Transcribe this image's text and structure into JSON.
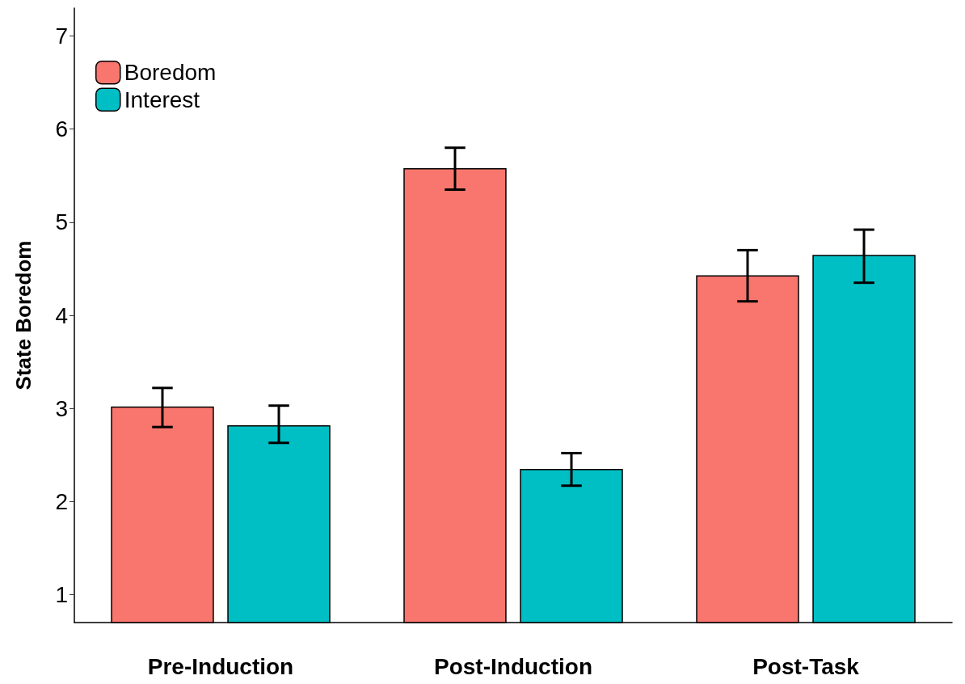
{
  "chart_data": {
    "type": "bar",
    "ylabel": "State Boredom",
    "categories": [
      "Pre-Induction",
      "Post-Induction",
      "Post-Task"
    ],
    "series": [
      {
        "name": "Boredom",
        "color": "#f8766d",
        "values": [
          3.02,
          5.58,
          4.43
        ],
        "errors": [
          [
            2.8,
            3.22
          ],
          [
            5.35,
            5.8
          ],
          [
            4.15,
            4.7
          ]
        ]
      },
      {
        "name": "Interest",
        "color": "#00bfc4",
        "values": [
          2.82,
          2.35,
          4.65
        ],
        "errors": [
          [
            2.63,
            3.03
          ],
          [
            2.17,
            2.52
          ],
          [
            4.35,
            4.92
          ]
        ]
      }
    ],
    "ylim": [
      0.7,
      7.3
    ],
    "yticks": [
      1,
      2,
      3,
      4,
      5,
      6,
      7
    ],
    "grid": false,
    "legend": "top left"
  }
}
